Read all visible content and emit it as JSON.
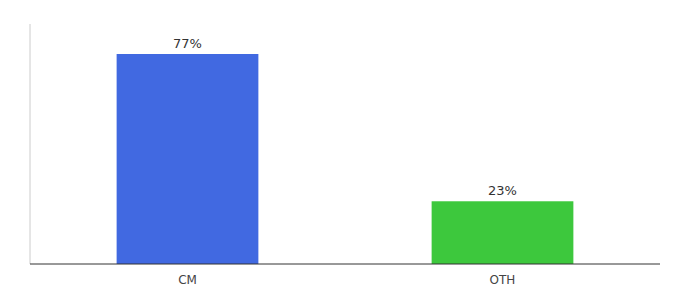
{
  "chart_data": {
    "type": "bar",
    "categories": [
      "CM",
      "OTH"
    ],
    "values": [
      77,
      23
    ],
    "value_labels": [
      "77%",
      "23%"
    ],
    "colors": [
      "#4169e1",
      "#3dc83d"
    ],
    "ylim": [
      0,
      88
    ],
    "data_labels": true,
    "tick_labels": "x",
    "grid": false
  }
}
